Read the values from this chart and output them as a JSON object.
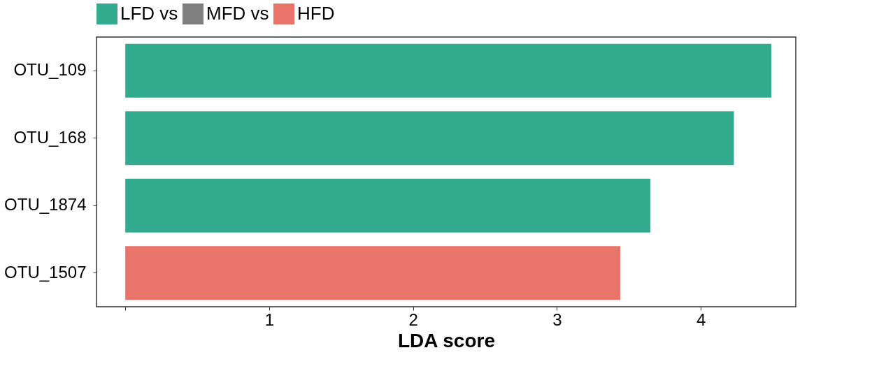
{
  "chart_data": {
    "type": "bar",
    "orientation": "horizontal",
    "xlabel": "LDA score",
    "categories": [
      "OTU_109",
      "OTU_168",
      "OTU_1874",
      "OTU_1507"
    ],
    "series": [
      {
        "name": "LFD vs",
        "color": "#33ab8e",
        "values": [
          4.49,
          4.23,
          3.65,
          null
        ]
      },
      {
        "name": "MFD vs",
        "color": "#808080",
        "values": [
          null,
          null,
          null,
          null
        ]
      },
      {
        "name": "HFD",
        "color": "#e9756a",
        "values": [
          null,
          null,
          null,
          3.44
        ]
      }
    ],
    "xlim": [
      -0.2,
      4.66
    ],
    "xticks": [
      {
        "value": 0,
        "label": null
      },
      1,
      2,
      3,
      4
    ],
    "legend": "top",
    "grid": false
  }
}
